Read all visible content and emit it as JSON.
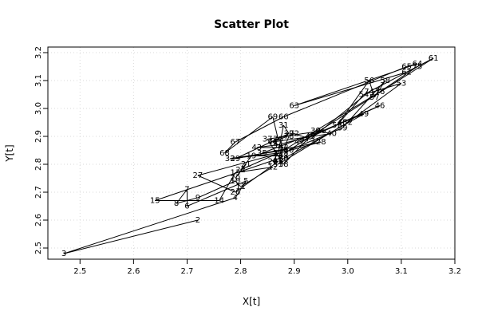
{
  "chart_data": {
    "type": "scatter",
    "title": "Scatter Plot",
    "xlabel": "X[t]",
    "ylabel": "Y[t]",
    "xlim": [
      2.44,
      3.2
    ],
    "ylim": [
      2.46,
      3.22
    ],
    "x_ticks": [
      "2.5",
      "2.6",
      "2.7",
      "2.8",
      "2.9",
      "3.0",
      "3.1",
      "3.2"
    ],
    "y_ticks": [
      "2.5",
      "2.6",
      "2.7",
      "2.8",
      "2.9",
      "3.0",
      "3.1",
      "3.2"
    ],
    "grid": true,
    "connect_in_order": true,
    "points": [
      {
        "t": "2",
        "x": 2.72,
        "y": 2.6
      },
      {
        "t": "3",
        "x": 2.47,
        "y": 2.48
      },
      {
        "t": "4",
        "x": 2.79,
        "y": 2.68
      },
      {
        "t": "5",
        "x": 2.81,
        "y": 2.74
      },
      {
        "t": "6",
        "x": 2.7,
        "y": 2.65
      },
      {
        "t": "7",
        "x": 2.7,
        "y": 2.71
      },
      {
        "t": "8",
        "x": 2.68,
        "y": 2.66
      },
      {
        "t": "9",
        "x": 2.72,
        "y": 2.68
      },
      {
        "t": "10",
        "x": 2.79,
        "y": 2.74
      },
      {
        "t": "11",
        "x": 2.8,
        "y": 2.72
      },
      {
        "t": "12",
        "x": 2.86,
        "y": 2.79
      },
      {
        "t": "13",
        "x": 2.79,
        "y": 2.77
      },
      {
        "t": "14",
        "x": 2.76,
        "y": 2.67
      },
      {
        "t": "15",
        "x": 2.64,
        "y": 2.67
      },
      {
        "t": "16",
        "x": 2.87,
        "y": 2.82
      },
      {
        "t": "17",
        "x": 2.88,
        "y": 2.83
      },
      {
        "t": "18",
        "x": 2.88,
        "y": 2.83
      },
      {
        "t": "19",
        "x": 2.82,
        "y": 2.83
      },
      {
        "t": "20",
        "x": 2.79,
        "y": 2.75
      },
      {
        "t": "21",
        "x": 2.81,
        "y": 2.8
      },
      {
        "t": "22",
        "x": 2.8,
        "y": 2.78
      },
      {
        "t": "23",
        "x": 2.87,
        "y": 2.84
      },
      {
        "t": "24",
        "x": 2.86,
        "y": 2.81
      },
      {
        "t": "25",
        "x": 2.87,
        "y": 2.81
      },
      {
        "t": "26",
        "x": 2.79,
        "y": 2.7
      },
      {
        "t": "27",
        "x": 2.72,
        "y": 2.76
      },
      {
        "t": "28",
        "x": 2.95,
        "y": 2.88
      },
      {
        "t": "29",
        "x": 2.79,
        "y": 2.82
      },
      {
        "t": "30",
        "x": 2.89,
        "y": 2.91
      },
      {
        "t": "31",
        "x": 2.88,
        "y": 2.94
      },
      {
        "t": "32",
        "x": 2.87,
        "y": 2.84
      },
      {
        "t": "33",
        "x": 2.78,
        "y": 2.82
      },
      {
        "t": "34",
        "x": 2.88,
        "y": 2.85
      },
      {
        "t": "35",
        "x": 2.84,
        "y": 2.84
      },
      {
        "t": "36",
        "x": 2.95,
        "y": 2.92
      },
      {
        "t": "37",
        "x": 2.85,
        "y": 2.89
      },
      {
        "t": "38",
        "x": 2.88,
        "y": 2.8
      },
      {
        "t": "39",
        "x": 2.94,
        "y": 2.92
      },
      {
        "t": "40",
        "x": 2.97,
        "y": 2.91
      },
      {
        "t": "41",
        "x": 2.86,
        "y": 2.88
      },
      {
        "t": "42",
        "x": 2.88,
        "y": 2.86
      },
      {
        "t": "43",
        "x": 2.83,
        "y": 2.86
      },
      {
        "t": "44",
        "x": 2.87,
        "y": 2.87
      },
      {
        "t": "45",
        "x": 2.93,
        "y": 2.9
      },
      {
        "t": "46",
        "x": 3.06,
        "y": 3.01
      },
      {
        "t": "47",
        "x": 2.91,
        "y": 2.88
      },
      {
        "t": "48",
        "x": 2.99,
        "y": 2.95
      },
      {
        "t": "49",
        "x": 3.03,
        "y": 2.98
      },
      {
        "t": "50",
        "x": 2.88,
        "y": 2.82
      },
      {
        "t": "51",
        "x": 2.87,
        "y": 2.8
      },
      {
        "t": "52",
        "x": 3.0,
        "y": 2.95
      },
      {
        "t": "53",
        "x": 3.1,
        "y": 3.09
      },
      {
        "t": "54",
        "x": 3.03,
        "y": 3.05
      },
      {
        "t": "55",
        "x": 2.98,
        "y": 2.94
      },
      {
        "t": "56",
        "x": 3.04,
        "y": 3.1
      },
      {
        "t": "57",
        "x": 3.05,
        "y": 3.04
      },
      {
        "t": "58",
        "x": 3.07,
        "y": 3.1
      },
      {
        "t": "59",
        "x": 2.99,
        "y": 2.93
      },
      {
        "t": "60",
        "x": 2.89,
        "y": 2.85
      },
      {
        "t": "61",
        "x": 3.16,
        "y": 3.18
      },
      {
        "t": "62",
        "x": 3.11,
        "y": 3.13
      },
      {
        "t": "63",
        "x": 2.9,
        "y": 3.01
      },
      {
        "t": "64",
        "x": 3.13,
        "y": 3.16
      },
      {
        "t": "65",
        "x": 3.11,
        "y": 3.15
      },
      {
        "t": "66",
        "x": 2.88,
        "y": 2.97
      },
      {
        "t": "67",
        "x": 2.79,
        "y": 2.88
      },
      {
        "t": "68",
        "x": 2.77,
        "y": 2.84
      },
      {
        "t": "69",
        "x": 2.86,
        "y": 2.97
      },
      {
        "t": "70",
        "x": 2.87,
        "y": 2.89
      },
      {
        "t": "71",
        "x": 2.86,
        "y": 2.88
      },
      {
        "t": "72",
        "x": 2.9,
        "y": 2.91
      },
      {
        "t": "73",
        "x": 2.93,
        "y": 2.89
      },
      {
        "t": "74",
        "x": 3.04,
        "y": 3.06
      },
      {
        "t": "75",
        "x": 3.13,
        "y": 3.15
      },
      {
        "t": "76",
        "x": 3.06,
        "y": 3.06
      },
      {
        "t": "77",
        "x": 2.88,
        "y": 2.85
      },
      {
        "t": "78",
        "x": 2.89,
        "y": 2.9
      }
    ]
  }
}
